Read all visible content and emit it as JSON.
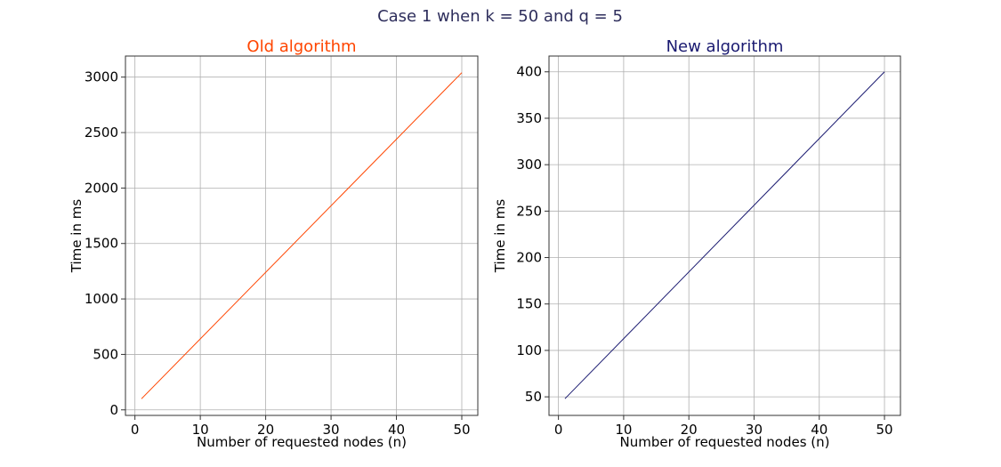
{
  "figure": {
    "suptitle": "Case 1 when k = 50 and q = 5",
    "suptitle_color": "#2e2e5c"
  },
  "chart_data": [
    {
      "type": "line",
      "title": "Old algorithm",
      "title_color": "#ff4500",
      "line_color": "#ff4500",
      "xlabel": "Number of requested nodes (n)",
      "ylabel": "Time in ms",
      "xlim": [
        -1.45,
        52.45
      ],
      "ylim": [
        -50,
        3190
      ],
      "xticks": [
        0,
        10,
        20,
        30,
        40,
        50
      ],
      "yticks": [
        0,
        500,
        1000,
        1500,
        2000,
        2500,
        3000
      ],
      "grid": true,
      "x": [
        1,
        50
      ],
      "y": [
        100,
        3040
      ]
    },
    {
      "type": "line",
      "title": "New algorithm",
      "title_color": "#191970",
      "line_color": "#191970",
      "xlabel": "Number of requested nodes (n)",
      "ylabel": "Time in ms",
      "xlim": [
        -1.45,
        52.45
      ],
      "ylim": [
        30,
        417
      ],
      "xticks": [
        0,
        10,
        20,
        30,
        40,
        50
      ],
      "yticks": [
        50,
        100,
        150,
        200,
        250,
        300,
        350,
        400
      ],
      "grid": true,
      "x": [
        1,
        50
      ],
      "y": [
        48,
        400
      ]
    }
  ]
}
